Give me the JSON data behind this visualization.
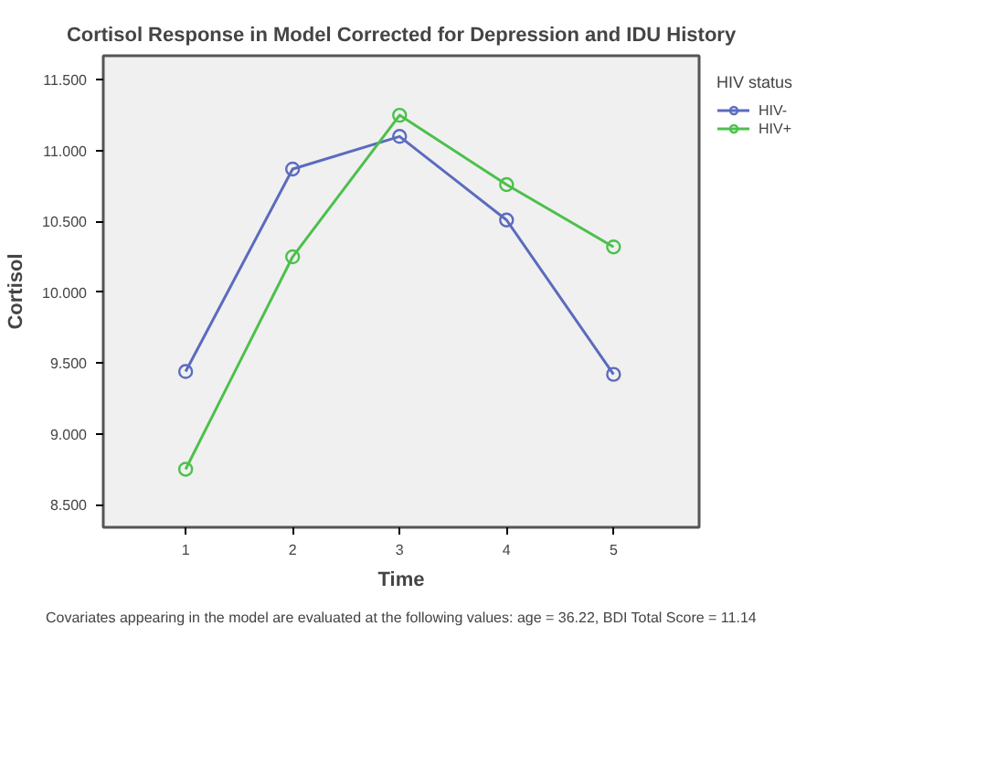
{
  "chart_data": {
    "type": "line",
    "title": "Cortisol Response in Model Corrected for Depression and IDU History",
    "xlabel": "Time",
    "ylabel": "Cortisol",
    "legend_title": "HIV status",
    "x": [
      1,
      2,
      3,
      4,
      5
    ],
    "series": [
      {
        "name": "HIV-",
        "color": "#5b6bbf",
        "values": [
          9.44,
          10.87,
          11.1,
          10.51,
          9.42
        ]
      },
      {
        "name": "HIV+",
        "color": "#4cc04c",
        "values": [
          8.75,
          10.25,
          11.25,
          10.76,
          10.32
        ]
      }
    ],
    "xlim": [
      0.23,
      5.8
    ],
    "xticks": [
      1,
      2,
      3,
      4,
      5
    ],
    "ylim": [
      8.34,
      11.67
    ],
    "yticks": [
      {
        "value": 8.5,
        "label": "8.500"
      },
      {
        "value": 9,
        "label": "9.000"
      },
      {
        "value": 9.5,
        "label": "9.500"
      },
      {
        "value": 10,
        "label": "10.000"
      },
      {
        "value": 10.5,
        "label": "10.500"
      },
      {
        "value": 11,
        "label": "11.000"
      },
      {
        "value": 11.5,
        "label": "11.500"
      }
    ],
    "marker": "circle",
    "line_style": "solid",
    "legend": "top right",
    "grid": false,
    "annotations": [
      "Covariates appearing in the model are evaluated at the following values: age = 36.22, BDI Total Score = 11.14"
    ]
  }
}
